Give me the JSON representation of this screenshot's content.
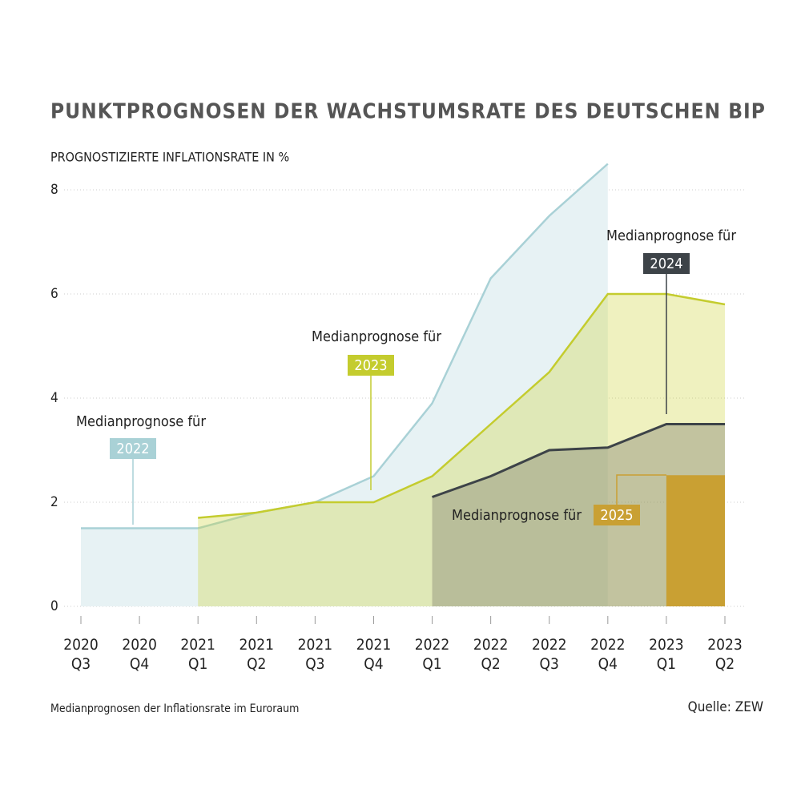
{
  "chart_data": {
    "type": "area",
    "title": "PUNKTPROGNOSEN DER WACHSTUMSRATE DES DEUTSCHEN BIP",
    "y_axis_label": "PROGNOSTIZIERTE INFLATIONSRATE IN %",
    "note": "Medianprognosen der Inflationsrate im Euroraum",
    "source": "Quelle: ZEW",
    "categories": [
      "2020\nQ3",
      "2020\nQ4",
      "2021\nQ1",
      "2021\nQ2",
      "2021\nQ3",
      "2021\nQ4",
      "2022\nQ1",
      "2022\nQ2",
      "2022\nQ3",
      "2022\nQ4",
      "2023\nQ1",
      "2023\nQ2"
    ],
    "ylim": [
      0,
      8.6
    ],
    "yticks": [
      0,
      2,
      4,
      6,
      8
    ],
    "grid": true,
    "series": [
      {
        "name": "2022",
        "annotation": "Medianprognose für",
        "color": "#a9d1d6",
        "fill": "#e7f2f4",
        "values": [
          1.5,
          1.5,
          1.5,
          1.8,
          2.0,
          2.5,
          3.9,
          6.3,
          7.5,
          8.5,
          null,
          null
        ]
      },
      {
        "name": "2023",
        "annotation": "Medianprognose für",
        "color": "#c4cc2e",
        "fill": "rgba(205,214,60,0.33)",
        "values": [
          null,
          null,
          1.7,
          1.8,
          2.0,
          2.0,
          2.5,
          3.5,
          4.5,
          6.0,
          6.0,
          5.8
        ]
      },
      {
        "name": "2024",
        "annotation": "Medianprognose für",
        "color": "#3d4348",
        "fill": "rgba(140,140,120,0.45)",
        "values": [
          null,
          null,
          null,
          null,
          null,
          null,
          2.1,
          2.5,
          3.0,
          3.05,
          3.5,
          3.5
        ]
      },
      {
        "name": "2025",
        "annotation": "Medianprognose für",
        "color": "#c9a033",
        "fill": "#c9a033",
        "values": [
          null,
          null,
          null,
          null,
          null,
          null,
          null,
          null,
          null,
          null,
          2.5,
          2.5
        ]
      }
    ]
  }
}
